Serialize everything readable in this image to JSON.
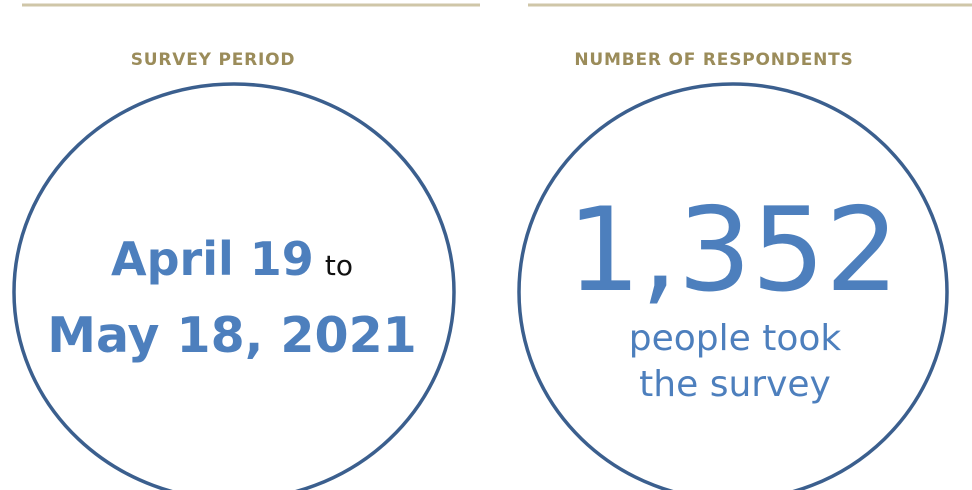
{
  "panels": [
    {
      "heading": "SURVEY PERIOD",
      "start": "April 19",
      "joiner": "to",
      "end": "May 18, 2021"
    },
    {
      "heading": "NUMBER OF RESPONDENTS",
      "number": "1,352",
      "caption_line1": "people took",
      "caption_line2": "the survey"
    }
  ]
}
